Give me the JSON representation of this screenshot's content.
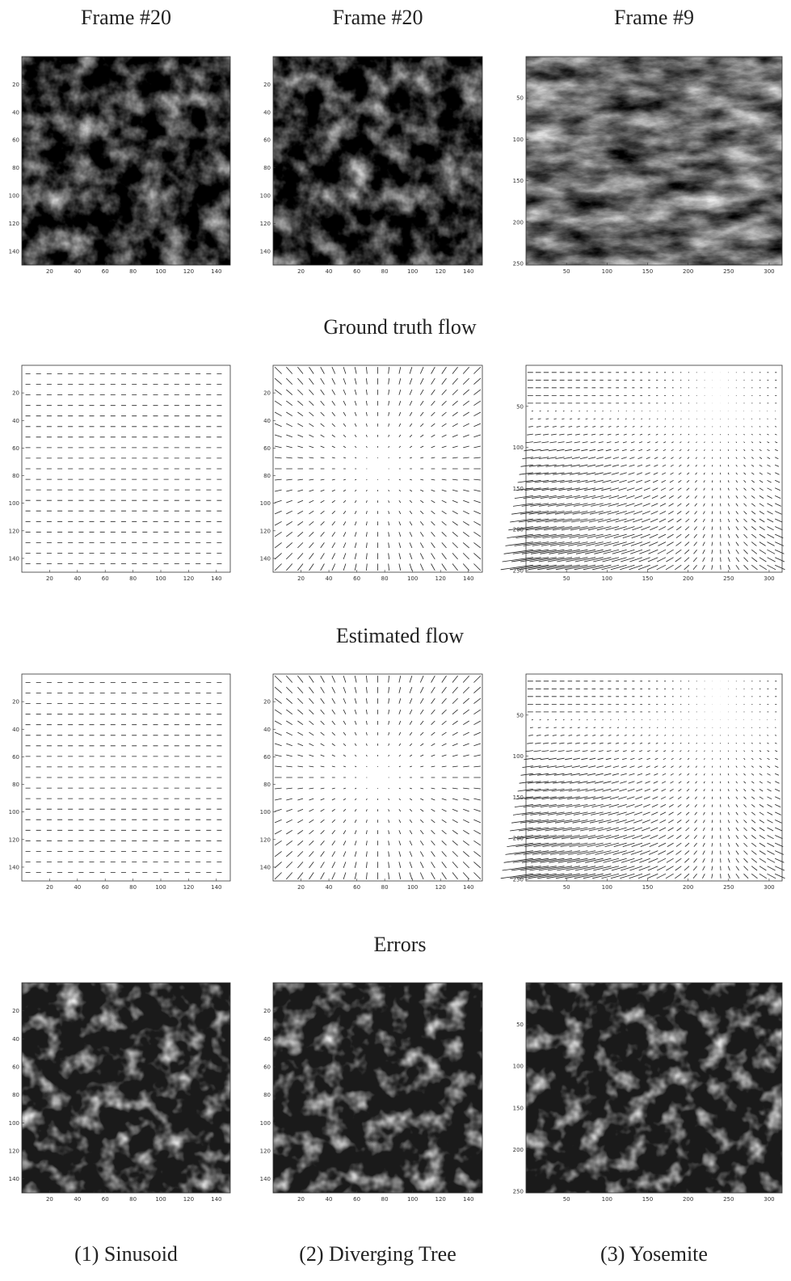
{
  "columns": [
    {
      "header": "Frame #20",
      "caption": "(1) Sinusoid",
      "xlim": [
        0,
        150
      ],
      "ylim": [
        0,
        150
      ],
      "xticks": [
        20,
        40,
        60,
        80,
        100,
        120,
        140
      ],
      "yticks": [
        20,
        40,
        60,
        80,
        100,
        120,
        140
      ]
    },
    {
      "header": "Frame #20",
      "caption": "(2) Diverging Tree",
      "xlim": [
        0,
        150
      ],
      "ylim": [
        0,
        150
      ],
      "xticks": [
        20,
        40,
        60,
        80,
        100,
        120,
        140
      ],
      "yticks": [
        20,
        40,
        60,
        80,
        100,
        120,
        140
      ]
    },
    {
      "header": "Frame #9",
      "caption": "(3) Yosemite",
      "xlim": [
        0,
        316
      ],
      "ylim": [
        0,
        252
      ],
      "xticks": [
        50,
        100,
        150,
        200,
        250,
        300
      ],
      "yticks": [
        50,
        100,
        150,
        200,
        250
      ]
    }
  ],
  "row_titles": [
    "Ground truth flow",
    "Estimated flow",
    "Errors"
  ]
}
